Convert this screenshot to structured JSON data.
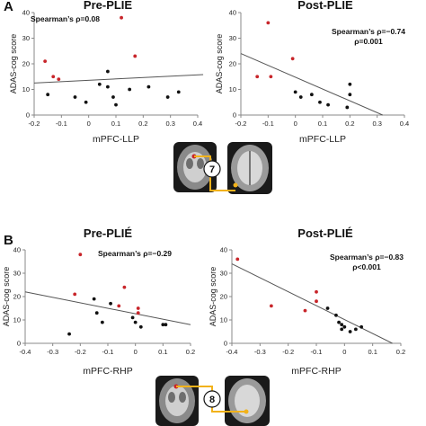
{
  "panel_labels": [
    "A",
    "B"
  ],
  "brain_badges": [
    "7",
    "8"
  ],
  "colors": {
    "red_points": "#c8252a",
    "black_points": "#111111",
    "connector": "#f2b21a",
    "fit_line": "#555555",
    "axis": "#888888"
  },
  "chart_data": [
    {
      "type": "scatter",
      "title": "Pre-PLIE",
      "annotation": "Spearman’s ρ=0.08",
      "xlabel": "mPFC-LLP",
      "ylabel": "ADAS-cog score",
      "xlim": [
        -0.2,
        0.4
      ],
      "ylim": [
        0,
        40
      ],
      "xticks": [
        "-0.2",
        "-0.1",
        "0",
        "0.1",
        "0.2",
        "0.3",
        "0.4"
      ],
      "yticks": [
        "0",
        "10",
        "20",
        "30",
        "40"
      ],
      "series": [
        {
          "color": "red",
          "points": [
            [
              -0.16,
              21
            ],
            [
              -0.13,
              15
            ],
            [
              -0.11,
              14
            ],
            [
              0.12,
              38
            ],
            [
              0.17,
              23
            ]
          ]
        },
        {
          "color": "black",
          "points": [
            [
              -0.15,
              8
            ],
            [
              -0.05,
              7
            ],
            [
              -0.01,
              5
            ],
            [
              0.04,
              12
            ],
            [
              0.07,
              17
            ],
            [
              0.07,
              11
            ],
            [
              0.09,
              7
            ],
            [
              0.1,
              4
            ],
            [
              0.15,
              10
            ],
            [
              0.22,
              11
            ],
            [
              0.29,
              7
            ],
            [
              0.33,
              9
            ]
          ]
        }
      ],
      "fit_line": [
        [
          -0.2,
          12.5
        ],
        [
          0.42,
          15.8
        ]
      ]
    },
    {
      "type": "scatter",
      "title": "Post-PLIE",
      "annotation": "Spearman’s ρ=−0.74",
      "annotation2": "ρ=0.001",
      "xlabel": "mPFC-LLP",
      "ylabel": "ADAS-cog score",
      "xlim": [
        -0.2,
        0.4
      ],
      "ylim": [
        0,
        40
      ],
      "xticks": [
        "-0.2",
        "-0.1",
        "0",
        "0.1",
        "0.2",
        "0.3",
        "0.4"
      ],
      "yticks": [
        "0",
        "10",
        "20",
        "30",
        "40"
      ],
      "series": [
        {
          "color": "red",
          "points": [
            [
              -0.1,
              36
            ],
            [
              -0.14,
              15
            ],
            [
              -0.09,
              15
            ],
            [
              -0.01,
              22
            ]
          ]
        },
        {
          "color": "black",
          "points": [
            [
              0.0,
              9
            ],
            [
              0.02,
              7
            ],
            [
              0.06,
              8
            ],
            [
              0.09,
              5
            ],
            [
              0.12,
              4
            ],
            [
              0.2,
              12
            ],
            [
              0.2,
              8
            ],
            [
              0.19,
              3
            ]
          ]
        }
      ],
      "fit_line": [
        [
          -0.2,
          24
        ],
        [
          0.32,
          0
        ]
      ]
    },
    {
      "type": "scatter",
      "title": "Pre-PLIÉ",
      "annotation": "Spearman’s ρ=−0.29",
      "xlabel": "mPFC-RHP",
      "ylabel": "ADAS-cog score",
      "xlim": [
        -0.4,
        0.2
      ],
      "ylim": [
        0,
        40
      ],
      "xticks": [
        "-0.4",
        "-0.3",
        "-0.2",
        "-0.1",
        "0",
        "0.1",
        "0.2"
      ],
      "yticks": [
        "0",
        "10",
        "20",
        "30",
        "40"
      ],
      "series": [
        {
          "color": "red",
          "points": [
            [
              -0.2,
              38
            ],
            [
              -0.22,
              21
            ],
            [
              -0.04,
              24
            ],
            [
              -0.06,
              16
            ],
            [
              0.01,
              15
            ],
            [
              0.01,
              13
            ]
          ]
        },
        {
          "color": "black",
          "points": [
            [
              -0.24,
              4
            ],
            [
              -0.15,
              19
            ],
            [
              -0.14,
              13
            ],
            [
              -0.12,
              9
            ],
            [
              -0.09,
              17
            ],
            [
              -0.01,
              11
            ],
            [
              0.0,
              9
            ],
            [
              0.02,
              7
            ],
            [
              0.1,
              8
            ],
            [
              0.11,
              8
            ]
          ]
        }
      ],
      "fit_line": [
        [
          -0.4,
          22
        ],
        [
          0.2,
          8
        ]
      ]
    },
    {
      "type": "scatter",
      "title": "Post-PLIÉ",
      "annotation": "Spearman’s ρ=−0.83",
      "annotation2": "ρ<0.001",
      "xlabel": "mPFC-RHP",
      "ylabel": "ADAS-cog score",
      "xlim": [
        -0.4,
        0.2
      ],
      "ylim": [
        0,
        40
      ],
      "xticks": [
        "-0.4",
        "-0.3",
        "-0.2",
        "-0.1",
        "0",
        "0.1",
        "0.2"
      ],
      "yticks": [
        "0",
        "10",
        "20",
        "30",
        "40"
      ],
      "series": [
        {
          "color": "red",
          "points": [
            [
              -0.38,
              36
            ],
            [
              -0.26,
              16
            ],
            [
              -0.14,
              14
            ],
            [
              -0.1,
              22
            ],
            [
              -0.1,
              18
            ]
          ]
        },
        {
          "color": "black",
          "points": [
            [
              -0.06,
              15
            ],
            [
              -0.03,
              12
            ],
            [
              -0.02,
              9
            ],
            [
              -0.01,
              8
            ],
            [
              -0.01,
              6
            ],
            [
              0.0,
              7
            ],
            [
              0.02,
              5
            ],
            [
              0.04,
              6
            ],
            [
              0.06,
              7
            ]
          ]
        }
      ],
      "fit_line": [
        [
          -0.4,
          34
        ],
        [
          0.17,
          0
        ]
      ]
    }
  ]
}
